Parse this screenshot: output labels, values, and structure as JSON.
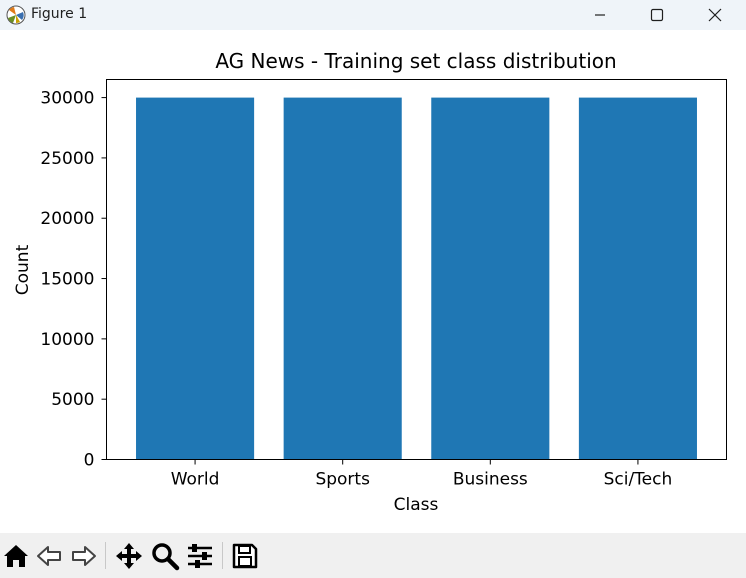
{
  "window": {
    "title": "Figure 1",
    "controls": [
      "minimize",
      "maximize",
      "close"
    ]
  },
  "toolbar": {
    "buttons": [
      "home-icon",
      "back-icon",
      "forward-icon",
      "pan-icon",
      "zoom-icon",
      "configure-subplots-icon",
      "save-icon"
    ]
  },
  "chart_data": {
    "type": "bar",
    "title": "AG News - Training set class distribution",
    "xlabel": "Class",
    "ylabel": "Count",
    "categories": [
      "World",
      "Sports",
      "Business",
      "Sci/Tech"
    ],
    "values": [
      30000,
      30000,
      30000,
      30000
    ],
    "ylim": [
      0,
      31500
    ],
    "yticks": [
      "0",
      "5000",
      "10000",
      "15000",
      "20000",
      "25000",
      "30000"
    ],
    "bar_color": "#1f77b4",
    "grid": false,
    "legend": "none"
  }
}
